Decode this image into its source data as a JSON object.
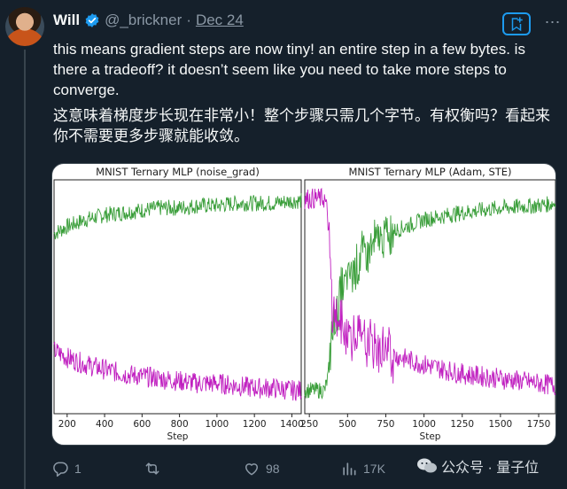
{
  "author": {
    "name": "Will",
    "handle": "@_brickner",
    "separator": "·",
    "date": "Dec 24"
  },
  "tweet": {
    "line1": "this means gradient steps are now tiny! an entire step in a few bytes. is there a tradeoff? it doesn’t seem like you need to take more steps to converge.",
    "line2": "这意味着梯度步长现在非常小！整个步骤只需几个字节。有权衡吗？看起来你不需要更多步骤就能收敛。"
  },
  "actions": {
    "replies": "1",
    "retweets": "",
    "likes": "98",
    "views": "17K"
  },
  "watermark": {
    "source": "公众号 · 量子位"
  },
  "colors": {
    "green": "#3a9e3a",
    "magenta": "#c020c0",
    "accent": "#1d9bf0"
  },
  "chart_data": [
    {
      "type": "line",
      "title": "MNIST Ternary MLP (noise_grad)",
      "xlabel": "Step",
      "xlim": [
        130,
        1450
      ],
      "xticks": [
        200,
        400,
        600,
        800,
        1000,
        1200,
        1400
      ],
      "xtick_labels": [
        "200",
        "400",
        "600",
        "800",
        "1000",
        "1200",
        "1400"
      ],
      "ylim": [
        0,
        1
      ],
      "series": [
        {
          "color": "green",
          "x": [
            130,
            200,
            300,
            400,
            500,
            600,
            700,
            800,
            900,
            1000,
            1100,
            1200,
            1300,
            1400,
            1450
          ],
          "y": [
            0.77,
            0.8,
            0.83,
            0.85,
            0.86,
            0.87,
            0.88,
            0.88,
            0.89,
            0.89,
            0.9,
            0.9,
            0.9,
            0.91,
            0.91
          ]
        },
        {
          "color": "magenta",
          "x": [
            130,
            200,
            300,
            400,
            500,
            600,
            700,
            800,
            900,
            1000,
            1100,
            1200,
            1300,
            1400,
            1450
          ],
          "y": [
            0.27,
            0.24,
            0.21,
            0.19,
            0.17,
            0.16,
            0.15,
            0.14,
            0.13,
            0.13,
            0.12,
            0.11,
            0.11,
            0.1,
            0.1
          ]
        }
      ]
    },
    {
      "type": "line",
      "title": "MNIST Ternary MLP (Adam, STE)",
      "xlabel": "Step",
      "xlim": [
        220,
        1860
      ],
      "xticks": [
        250,
        500,
        750,
        1000,
        1250,
        1500,
        1750
      ],
      "xtick_labels": [
        "250",
        "500",
        "750",
        "1000",
        "1250",
        "1500",
        "1750"
      ],
      "ylim": [
        0,
        1
      ],
      "series": [
        {
          "color": "green",
          "x": [
            220,
            300,
            350,
            370,
            400,
            450,
            500,
            600,
            700,
            800,
            1000,
            1250,
            1500,
            1750,
            1860
          ],
          "y": [
            0.1,
            0.1,
            0.1,
            0.15,
            0.35,
            0.5,
            0.58,
            0.68,
            0.74,
            0.78,
            0.83,
            0.86,
            0.88,
            0.89,
            0.9
          ]
        },
        {
          "color": "magenta",
          "x": [
            220,
            300,
            350,
            370,
            400,
            450,
            500,
            600,
            700,
            800,
            1000,
            1250,
            1500,
            1750,
            1860
          ],
          "y": [
            0.92,
            0.92,
            0.92,
            0.85,
            0.45,
            0.38,
            0.35,
            0.31,
            0.28,
            0.25,
            0.21,
            0.17,
            0.15,
            0.13,
            0.12
          ]
        }
      ]
    }
  ]
}
